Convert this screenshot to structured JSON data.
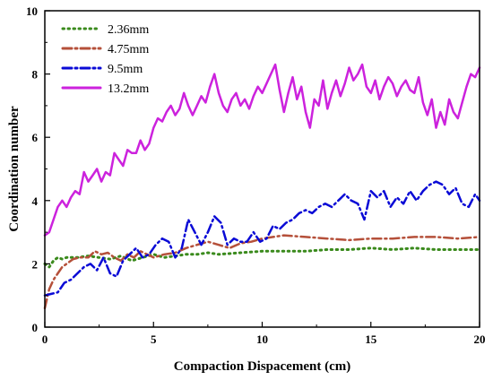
{
  "chart_data": {
    "type": "line",
    "title": "",
    "xlabel": "Compaction Dispacement (cm)",
    "ylabel": "Coordination number",
    "xlim": [
      0,
      20
    ],
    "ylim": [
      0,
      10
    ],
    "xticks": [
      "0",
      "5",
      "10",
      "15",
      "20"
    ],
    "yticks": [
      "0",
      "2",
      "4",
      "6",
      "8",
      "10"
    ],
    "grid": false,
    "legend_position": "top-left",
    "series": [
      {
        "name": "2.36mm",
        "color": "#3a8a1c",
        "style": "dotted",
        "x": [
          0,
          0.2,
          0.4,
          0.6,
          0.8,
          1.0,
          1.5,
          2.0,
          2.5,
          3.0,
          3.5,
          4.0,
          4.5,
          5.0,
          5.5,
          6.0,
          6.5,
          7.0,
          7.5,
          8.0,
          9.0,
          10.0,
          11.0,
          12.0,
          13.0,
          14.0,
          15.0,
          16.0,
          17.0,
          18.0,
          19.0,
          20.0
        ],
        "values": [
          2.0,
          1.9,
          2.1,
          2.2,
          2.15,
          2.2,
          2.2,
          2.25,
          2.2,
          2.15,
          2.25,
          2.1,
          2.2,
          2.3,
          2.2,
          2.25,
          2.3,
          2.3,
          2.35,
          2.3,
          2.35,
          2.4,
          2.4,
          2.4,
          2.45,
          2.45,
          2.5,
          2.45,
          2.5,
          2.45,
          2.45,
          2.45
        ]
      },
      {
        "name": "4.75mm",
        "color": "#b5503a",
        "style": "dashdot",
        "x": [
          0,
          0.2,
          0.4,
          0.6,
          0.8,
          1.0,
          1.3,
          1.6,
          2.0,
          2.3,
          2.6,
          2.9,
          3.2,
          3.5,
          3.8,
          4.1,
          4.4,
          4.7,
          5.0,
          5.5,
          6.0,
          6.5,
          7.0,
          7.5,
          8.0,
          8.5,
          9.0,
          9.5,
          10.0,
          10.5,
          11.0,
          12.0,
          13.0,
          14.0,
          15.0,
          16.0,
          17.0,
          18.0,
          19.0,
          20.0
        ],
        "values": [
          0.6,
          1.2,
          1.5,
          1.7,
          1.9,
          2.0,
          2.15,
          2.2,
          2.2,
          2.4,
          2.3,
          2.35,
          2.2,
          2.1,
          2.3,
          2.2,
          2.4,
          2.3,
          2.2,
          2.3,
          2.35,
          2.5,
          2.6,
          2.7,
          2.6,
          2.5,
          2.65,
          2.7,
          2.8,
          2.85,
          2.9,
          2.85,
          2.8,
          2.75,
          2.8,
          2.8,
          2.85,
          2.85,
          2.8,
          2.85
        ]
      },
      {
        "name": "9.5mm",
        "color": "#0a0ad6",
        "style": "dashdot",
        "x": [
          0,
          0.3,
          0.6,
          0.9,
          1.2,
          1.5,
          1.8,
          2.1,
          2.4,
          2.7,
          3.0,
          3.3,
          3.6,
          3.9,
          4.2,
          4.5,
          4.8,
          5.1,
          5.4,
          5.7,
          6.0,
          6.3,
          6.6,
          6.9,
          7.2,
          7.5,
          7.8,
          8.1,
          8.4,
          8.7,
          9.0,
          9.3,
          9.6,
          9.9,
          10.2,
          10.5,
          10.8,
          11.1,
          11.4,
          11.7,
          12.0,
          12.3,
          12.6,
          12.9,
          13.2,
          13.5,
          13.8,
          14.1,
          14.4,
          14.7,
          15.0,
          15.3,
          15.6,
          15.9,
          16.2,
          16.5,
          16.8,
          17.1,
          17.4,
          17.7,
          18.0,
          18.3,
          18.6,
          18.9,
          19.2,
          19.5,
          19.8,
          20.0
        ],
        "values": [
          1.0,
          1.05,
          1.1,
          1.4,
          1.5,
          1.7,
          1.9,
          2.0,
          1.8,
          2.2,
          1.7,
          1.6,
          2.1,
          2.3,
          2.5,
          2.2,
          2.3,
          2.6,
          2.8,
          2.7,
          2.2,
          2.5,
          3.4,
          3.0,
          2.6,
          3.0,
          3.5,
          3.3,
          2.6,
          2.8,
          2.7,
          2.7,
          3.0,
          2.7,
          2.8,
          3.2,
          3.1,
          3.3,
          3.4,
          3.6,
          3.7,
          3.6,
          3.8,
          3.9,
          3.8,
          4.0,
          4.2,
          4.0,
          3.9,
          3.4,
          4.3,
          4.1,
          4.3,
          3.8,
          4.1,
          3.9,
          4.3,
          4.0,
          4.3,
          4.5,
          4.6,
          4.5,
          4.2,
          4.4,
          3.9,
          3.8,
          4.2,
          4.0
        ]
      },
      {
        "name": "13.2mm",
        "color": "#cc22dd",
        "style": "solid",
        "x": [
          0,
          0.2,
          0.4,
          0.6,
          0.8,
          1.0,
          1.2,
          1.4,
          1.6,
          1.8,
          2.0,
          2.2,
          2.4,
          2.6,
          2.8,
          3.0,
          3.2,
          3.4,
          3.6,
          3.8,
          4.0,
          4.2,
          4.4,
          4.6,
          4.8,
          5.0,
          5.2,
          5.4,
          5.6,
          5.8,
          6.0,
          6.2,
          6.4,
          6.6,
          6.8,
          7.0,
          7.2,
          7.4,
          7.6,
          7.8,
          8.0,
          8.2,
          8.4,
          8.6,
          8.8,
          9.0,
          9.2,
          9.4,
          9.6,
          9.8,
          10.0,
          10.2,
          10.4,
          10.6,
          10.8,
          11.0,
          11.2,
          11.4,
          11.6,
          11.8,
          12.0,
          12.2,
          12.4,
          12.6,
          12.8,
          13.0,
          13.2,
          13.4,
          13.6,
          13.8,
          14.0,
          14.2,
          14.4,
          14.6,
          14.8,
          15.0,
          15.2,
          15.4,
          15.6,
          15.8,
          16.0,
          16.2,
          16.4,
          16.6,
          16.8,
          17.0,
          17.2,
          17.4,
          17.6,
          17.8,
          18.0,
          18.2,
          18.4,
          18.6,
          18.8,
          19.0,
          19.2,
          19.4,
          19.6,
          19.8,
          20.0
        ],
        "values": [
          2.9,
          3.0,
          3.4,
          3.8,
          4.0,
          3.8,
          4.1,
          4.3,
          4.2,
          4.9,
          4.6,
          4.8,
          5.0,
          4.6,
          4.9,
          4.8,
          5.5,
          5.3,
          5.1,
          5.6,
          5.5,
          5.5,
          5.9,
          5.6,
          5.8,
          6.3,
          6.6,
          6.5,
          6.8,
          7.0,
          6.7,
          6.9,
          7.4,
          7.0,
          6.7,
          7.0,
          7.3,
          7.1,
          7.6,
          8.0,
          7.4,
          7.0,
          6.8,
          7.2,
          7.4,
          7.0,
          7.2,
          6.9,
          7.3,
          7.6,
          7.4,
          7.7,
          8.0,
          8.3,
          7.5,
          6.8,
          7.4,
          7.9,
          7.2,
          7.6,
          6.8,
          6.3,
          7.2,
          7.0,
          7.8,
          6.9,
          7.4,
          7.8,
          7.3,
          7.7,
          8.2,
          7.8,
          8.0,
          8.3,
          7.6,
          7.4,
          7.8,
          7.2,
          7.6,
          7.9,
          7.7,
          7.3,
          7.6,
          7.8,
          7.5,
          7.4,
          7.9,
          7.1,
          6.7,
          7.2,
          6.3,
          6.8,
          6.4,
          7.2,
          6.8,
          6.6,
          7.1,
          7.6,
          8.0,
          7.9,
          8.2
        ]
      }
    ]
  }
}
